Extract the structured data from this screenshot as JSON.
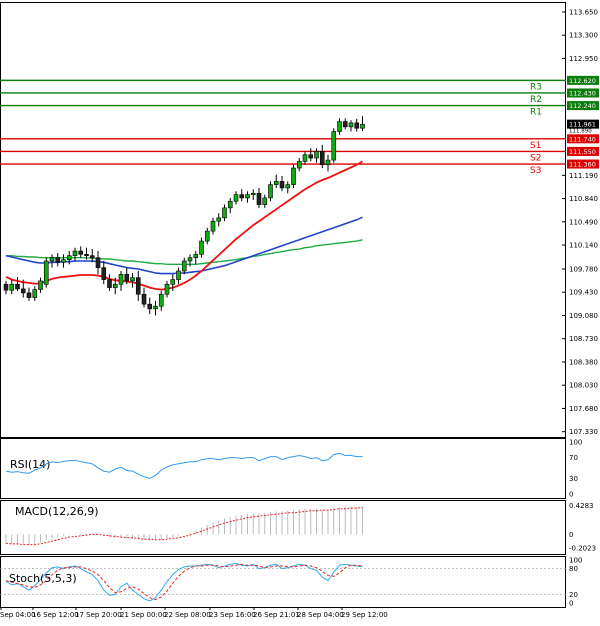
{
  "chart_data": {
    "type": "candlestick",
    "main_pane": {
      "yticks": [
        "113.650",
        "113.300",
        "112.950",
        "112.620",
        "112.430",
        "112.240",
        "111.961",
        "111.740",
        "111.550",
        "111.360",
        "111.190",
        "110.840",
        "110.490",
        "110.140",
        "109.780",
        "109.430",
        "109.080",
        "108.730",
        "108.380",
        "108.030",
        "107.680",
        "107.330"
      ],
      "ylim": [
        107.25,
        113.8
      ],
      "current_price": "111.961",
      "current_price_small": "111.890",
      "levels": [
        {
          "name": "R3",
          "value": 112.62,
          "label": "112.620",
          "color": "#0a7d0a"
        },
        {
          "name": "R2",
          "value": 112.43,
          "label": "112.430",
          "color": "#0a7d0a"
        },
        {
          "name": "R1",
          "value": 112.24,
          "label": "112.240",
          "color": "#0a7d0a"
        },
        {
          "name": "S1",
          "value": 111.74,
          "label": "111.740",
          "color": "#dd0000"
        },
        {
          "name": "S2",
          "value": 111.55,
          "label": "111.550",
          "color": "#dd0000"
        },
        {
          "name": "S3",
          "value": 111.36,
          "label": "111.360",
          "color": "#dd0000"
        }
      ],
      "ohlc": [
        [
          109.55,
          109.6,
          109.4,
          109.46
        ],
        [
          109.46,
          109.62,
          109.4,
          109.55
        ],
        [
          109.55,
          109.66,
          109.45,
          109.48
        ],
        [
          109.48,
          109.62,
          109.35,
          109.42
        ],
        [
          109.42,
          109.5,
          109.3,
          109.35
        ],
        [
          109.35,
          109.52,
          109.3,
          109.47
        ],
        [
          109.47,
          109.65,
          109.42,
          109.6
        ],
        [
          109.55,
          109.95,
          109.5,
          109.9
        ],
        [
          109.9,
          110.0,
          109.8,
          109.95
        ],
        [
          109.95,
          110.02,
          109.82,
          109.88
        ],
        [
          109.88,
          110.0,
          109.8,
          109.92
        ],
        [
          109.92,
          110.05,
          109.85,
          109.98
        ],
        [
          109.98,
          110.1,
          109.9,
          110.05
        ],
        [
          110.05,
          110.12,
          109.95,
          110.0
        ],
        [
          110.0,
          110.1,
          109.92,
          109.98
        ],
        [
          109.98,
          110.08,
          109.88,
          109.95
        ],
        [
          109.95,
          110.05,
          109.7,
          109.8
        ],
        [
          109.8,
          109.9,
          109.55,
          109.62
        ],
        [
          109.62,
          109.7,
          109.45,
          109.5
        ],
        [
          109.5,
          109.65,
          109.4,
          109.55
        ],
        [
          109.55,
          109.75,
          109.45,
          109.7
        ],
        [
          109.7,
          109.8,
          109.55,
          109.6
        ],
        [
          109.6,
          109.72,
          109.5,
          109.65
        ],
        [
          109.65,
          109.75,
          109.3,
          109.4
        ],
        [
          109.4,
          109.5,
          109.2,
          109.25
        ],
        [
          109.25,
          109.35,
          109.1,
          109.18
        ],
        [
          109.18,
          109.3,
          109.08,
          109.22
        ],
        [
          109.22,
          109.45,
          109.15,
          109.4
        ],
        [
          109.4,
          109.6,
          109.35,
          109.55
        ],
        [
          109.55,
          109.7,
          109.45,
          109.62
        ],
        [
          109.62,
          109.8,
          109.55,
          109.75
        ],
        [
          109.75,
          109.95,
          109.7,
          109.9
        ],
        [
          109.9,
          110.0,
          109.82,
          109.95
        ],
        [
          109.95,
          110.05,
          109.85,
          110.0
        ],
        [
          110.0,
          110.25,
          109.95,
          110.2
        ],
        [
          110.2,
          110.4,
          110.15,
          110.35
        ],
        [
          110.35,
          110.55,
          110.3,
          110.5
        ],
        [
          110.5,
          110.62,
          110.42,
          110.55
        ],
        [
          110.55,
          110.75,
          110.5,
          110.7
        ],
        [
          110.7,
          110.85,
          110.62,
          110.8
        ],
        [
          110.8,
          110.95,
          110.75,
          110.9
        ],
        [
          110.9,
          110.98,
          110.8,
          110.85
        ],
        [
          110.85,
          110.95,
          110.78,
          110.9
        ],
        [
          110.9,
          110.98,
          110.82,
          110.92
        ],
        [
          110.92,
          111.0,
          110.7,
          110.75
        ],
        [
          110.75,
          110.9,
          110.7,
          110.85
        ],
        [
          110.85,
          111.1,
          110.8,
          111.05
        ],
        [
          111.05,
          111.2,
          111.0,
          111.1
        ],
        [
          111.1,
          111.18,
          110.95,
          111.0
        ],
        [
          111.0,
          111.1,
          110.92,
          111.05
        ],
        [
          111.05,
          111.35,
          111.0,
          111.3
        ],
        [
          111.3,
          111.45,
          111.25,
          111.4
        ],
        [
          111.4,
          111.55,
          111.35,
          111.5
        ],
        [
          111.5,
          111.6,
          111.4,
          111.45
        ],
        [
          111.45,
          111.6,
          111.38,
          111.55
        ],
        [
          111.55,
          111.65,
          111.3,
          111.35
        ],
        [
          111.35,
          111.5,
          111.25,
          111.42
        ],
        [
          111.42,
          111.9,
          111.38,
          111.85
        ],
        [
          111.85,
          112.05,
          111.8,
          112.0
        ],
        [
          112.0,
          112.05,
          111.88,
          111.92
        ],
        [
          111.92,
          112.02,
          111.85,
          111.98
        ],
        [
          111.98,
          112.04,
          111.85,
          111.9
        ],
        [
          111.9,
          112.08,
          111.86,
          111.96
        ]
      ],
      "ma_red": [
        109.66,
        109.62,
        109.6,
        109.58,
        109.57,
        109.56,
        109.56,
        109.6,
        109.63,
        109.65,
        109.66,
        109.67,
        109.68,
        109.69,
        109.69,
        109.69,
        109.68,
        109.66,
        109.63,
        109.61,
        109.6,
        109.59,
        109.58,
        109.56,
        109.53,
        109.5,
        109.48,
        109.47,
        109.48,
        109.5,
        109.53,
        109.57,
        109.62,
        109.68,
        109.75,
        109.83,
        109.91,
        109.99,
        110.07,
        110.15,
        110.23,
        110.3,
        110.37,
        110.44,
        110.5,
        110.56,
        110.62,
        110.68,
        110.74,
        110.8,
        110.86,
        110.92,
        110.98,
        111.03,
        111.08,
        111.12,
        111.15,
        111.19,
        111.23,
        111.27,
        111.31,
        111.35,
        111.4
      ],
      "ma_blue": [
        109.98,
        109.96,
        109.94,
        109.92,
        109.9,
        109.88,
        109.87,
        109.87,
        109.88,
        109.88,
        109.89,
        109.89,
        109.9,
        109.9,
        109.9,
        109.9,
        109.89,
        109.88,
        109.86,
        109.84,
        109.82,
        109.8,
        109.79,
        109.78,
        109.76,
        109.74,
        109.72,
        109.71,
        109.71,
        109.71,
        109.72,
        109.72,
        109.73,
        109.74,
        109.75,
        109.77,
        109.79,
        109.81,
        109.83,
        109.86,
        109.89,
        109.92,
        109.95,
        109.98,
        110.01,
        110.04,
        110.07,
        110.1,
        110.13,
        110.16,
        110.19,
        110.22,
        110.25,
        110.28,
        110.31,
        110.34,
        110.37,
        110.4,
        110.43,
        110.46,
        110.49,
        110.52,
        110.56
      ],
      "ma_green": [
        109.98,
        109.98,
        109.97,
        109.97,
        109.96,
        109.96,
        109.95,
        109.95,
        109.95,
        109.95,
        109.95,
        109.95,
        109.95,
        109.95,
        109.95,
        109.94,
        109.94,
        109.93,
        109.93,
        109.92,
        109.91,
        109.9,
        109.9,
        109.89,
        109.88,
        109.87,
        109.86,
        109.86,
        109.85,
        109.85,
        109.85,
        109.85,
        109.85,
        109.85,
        109.86,
        109.87,
        109.88,
        109.89,
        109.9,
        109.91,
        109.92,
        109.94,
        109.95,
        109.97,
        109.98,
        110.0,
        110.01,
        110.03,
        110.04,
        110.06,
        110.07,
        110.08,
        110.1,
        110.11,
        110.13,
        110.14,
        110.15,
        110.16,
        110.17,
        110.18,
        110.19,
        110.2,
        110.22
      ]
    },
    "rsi_pane": {
      "title": "RSI(14)",
      "yticks": [
        "100",
        "70",
        "30",
        "0"
      ],
      "values": [
        44,
        42,
        43,
        41,
        40,
        46,
        50,
        58,
        62,
        60,
        63,
        64,
        65,
        62,
        60,
        58,
        50,
        44,
        42,
        48,
        52,
        45,
        44,
        38,
        33,
        30,
        36,
        46,
        52,
        56,
        58,
        60,
        62,
        62,
        66,
        68,
        68,
        66,
        68,
        70,
        70,
        68,
        70,
        70,
        64,
        68,
        72,
        72,
        66,
        70,
        72,
        74,
        72,
        68,
        70,
        64,
        66,
        76,
        78,
        74,
        74,
        72,
        72
      ],
      "ylim": [
        0,
        100
      ]
    },
    "macd_pane": {
      "title": "MACD(12,26,9)",
      "yticks": [
        "0.4283",
        "0",
        "-0.2023"
      ],
      "ylim": [
        -0.26,
        0.48
      ],
      "histogram": [
        -0.14,
        -0.15,
        -0.15,
        -0.15,
        -0.15,
        -0.14,
        -0.12,
        -0.09,
        -0.06,
        -0.04,
        -0.02,
        -0.01,
        0.0,
        0.01,
        0.01,
        0.01,
        0.0,
        -0.02,
        -0.04,
        -0.05,
        -0.05,
        -0.06,
        -0.06,
        -0.07,
        -0.08,
        -0.09,
        -0.09,
        -0.08,
        -0.06,
        -0.04,
        -0.02,
        0.0,
        0.03,
        0.06,
        0.1,
        0.14,
        0.18,
        0.21,
        0.24,
        0.26,
        0.28,
        0.29,
        0.3,
        0.31,
        0.31,
        0.32,
        0.33,
        0.34,
        0.34,
        0.35,
        0.36,
        0.37,
        0.38,
        0.38,
        0.38,
        0.37,
        0.37,
        0.39,
        0.4,
        0.41,
        0.41,
        0.41,
        0.41
      ],
      "signal": [
        -0.13,
        -0.14,
        -0.14,
        -0.15,
        -0.15,
        -0.15,
        -0.14,
        -0.12,
        -0.1,
        -0.08,
        -0.06,
        -0.04,
        -0.03,
        -0.02,
        -0.01,
        0.0,
        0.0,
        -0.01,
        -0.02,
        -0.03,
        -0.04,
        -0.05,
        -0.05,
        -0.06,
        -0.07,
        -0.07,
        -0.08,
        -0.08,
        -0.07,
        -0.06,
        -0.05,
        -0.03,
        -0.01,
        0.02,
        0.05,
        0.08,
        0.11,
        0.14,
        0.17,
        0.19,
        0.21,
        0.23,
        0.25,
        0.26,
        0.27,
        0.28,
        0.29,
        0.3,
        0.31,
        0.32,
        0.32,
        0.33,
        0.34,
        0.35,
        0.35,
        0.36,
        0.36,
        0.37,
        0.38,
        0.38,
        0.39,
        0.39,
        0.4
      ]
    },
    "stoch_pane": {
      "title": "Stoch(5,5,3)",
      "yticks": [
        "100",
        "80",
        "20",
        "0"
      ],
      "ylim": [
        0,
        100
      ],
      "k": [
        50,
        42,
        45,
        38,
        30,
        40,
        55,
        70,
        82,
        84,
        80,
        84,
        86,
        80,
        72,
        66,
        52,
        30,
        18,
        20,
        38,
        46,
        30,
        20,
        10,
        5,
        12,
        30,
        50,
        66,
        78,
        84,
        86,
        86,
        88,
        90,
        88,
        82,
        86,
        90,
        92,
        88,
        86,
        90,
        80,
        82,
        88,
        90,
        80,
        82,
        86,
        90,
        88,
        80,
        76,
        60,
        52,
        72,
        88,
        90,
        88,
        86,
        84
      ],
      "d": [
        52,
        48,
        45,
        42,
        38,
        36,
        42,
        52,
        66,
        76,
        82,
        82,
        84,
        84,
        80,
        74,
        66,
        52,
        36,
        24,
        26,
        34,
        38,
        32,
        22,
        12,
        8,
        14,
        28,
        46,
        62,
        74,
        82,
        86,
        86,
        88,
        88,
        86,
        84,
        86,
        88,
        90,
        88,
        88,
        86,
        82,
        84,
        86,
        86,
        84,
        84,
        86,
        88,
        86,
        82,
        74,
        64,
        62,
        70,
        82,
        88,
        88,
        86
      ]
    },
    "xticks": [
      "Sep 04:00",
      "16 Sep 12:00",
      "17 Sep 20:00",
      "21 Sep 00:00",
      "22 Sep 08:00",
      "23 Sep 16:00",
      "26 Sep 21:01",
      "28 Sep 04:00",
      "29 Sep 12:00"
    ],
    "colors": {
      "bull": "#11aa11",
      "bear": "#222222",
      "ma_red": "#ee1111",
      "ma_blue": "#2244cc",
      "ma_green": "#22aa44",
      "rsi": "#3399ee",
      "macd_hist": "#bbbbbb",
      "macd_signal": "#ee2222",
      "stoch_k": "#33aaee",
      "stoch_d": "#ee2222"
    }
  }
}
